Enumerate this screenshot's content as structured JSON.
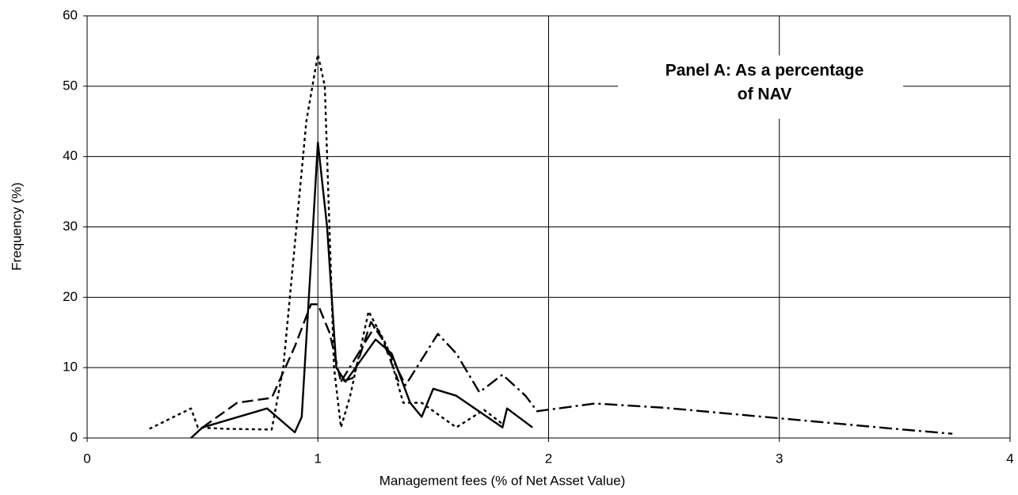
{
  "chart_data": {
    "type": "line",
    "annotation": [
      "Panel A:  As a percentage",
      "of NAV"
    ],
    "xlabel": "Management fees (% of Net Asset Value)",
    "ylabel": "Frequency (%)",
    "xlim": [
      0,
      4
    ],
    "xticks": [
      0,
      1,
      2,
      3,
      4
    ],
    "ylim": [
      0,
      60
    ],
    "yticks": [
      0,
      10,
      20,
      30,
      40,
      50,
      60
    ],
    "grid": true,
    "series": [
      {
        "color": "#000000",
        "style": "solid",
        "x": [
          0.45,
          0.5,
          0.78,
          0.9,
          0.93,
          0.97,
          1.0,
          1.04,
          1.08,
          1.12,
          1.25,
          1.32,
          1.4,
          1.45,
          1.5,
          1.6,
          1.8,
          1.82,
          1.93
        ],
        "values": [
          0,
          1.5,
          4.2,
          0.8,
          3,
          25,
          42,
          30,
          10,
          8,
          14,
          12,
          5,
          3,
          7,
          6,
          1.5,
          4.2,
          1.5
        ]
      },
      {
        "color": "#000000",
        "style": "dotted",
        "x": [
          0.27,
          0.45,
          0.48,
          0.6,
          0.8,
          0.85,
          0.95,
          1.0,
          1.03,
          1.07,
          1.1,
          1.14,
          1.22,
          1.3,
          1.37,
          1.45,
          1.6,
          1.72,
          1.8
        ],
        "values": [
          1.3,
          4.2,
          1.5,
          1.3,
          1.2,
          10,
          45,
          54.5,
          50,
          10,
          1.5,
          6,
          18,
          13,
          5,
          5,
          1.5,
          4,
          2
        ]
      },
      {
        "color": "#000000",
        "style": "dashed",
        "x": [
          0.5,
          0.65,
          0.8,
          0.9,
          0.97,
          1.0,
          1.05,
          1.1,
          1.15,
          1.23,
          1.28,
          1.35
        ],
        "values": [
          1.5,
          5,
          5.7,
          13,
          19,
          19,
          15,
          8,
          8.5,
          16.5,
          14,
          8
        ]
      },
      {
        "color": "#000000",
        "style": "dashdot",
        "x": [
          1.1,
          1.25,
          1.38,
          1.52,
          1.6,
          1.7,
          1.8,
          1.9,
          1.95,
          2.2,
          2.5,
          3.0,
          3.5,
          3.75
        ],
        "values": [
          8,
          16,
          7.5,
          14.8,
          12,
          6.5,
          9,
          6,
          3.8,
          4.9,
          4.3,
          2.8,
          1.3,
          0.6
        ]
      }
    ]
  }
}
